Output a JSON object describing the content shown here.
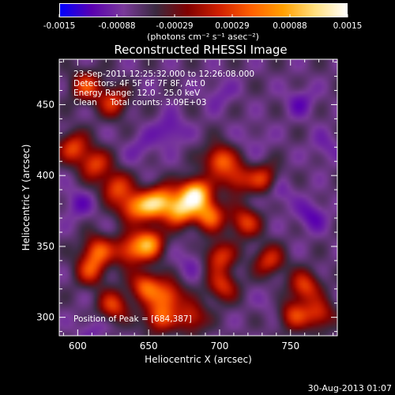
{
  "colorbar": {
    "ticks": [
      "-0.0015",
      "-0.00088",
      "-0.00029",
      "0.00029",
      "0.00088",
      "0.0015"
    ],
    "range": [
      -0.0015,
      0.0015
    ],
    "units_label": "(photons cm⁻² s⁻¹ asec⁻²)",
    "colors": [
      "#0000ff",
      "#5a00b0",
      "#7a3a9a",
      "#3a2a40",
      "#800000",
      "#d02000",
      "#ff6000",
      "#ffa000",
      "#ffe080",
      "#ffffff"
    ]
  },
  "chart_data": {
    "type": "heatmap",
    "title": "Reconstructed RHESSI Image",
    "xlabel": "Heliocentric X (arcsec)",
    "ylabel": "Heliocentric Y (arcsec)",
    "xlim": [
      587,
      783
    ],
    "ylim": [
      287,
      482
    ],
    "xticks": [
      600,
      650,
      700,
      750
    ],
    "yticks": [
      300,
      350,
      400,
      450
    ],
    "annotations": [
      "23-Sep-2011 12:25:32.000 to 12:26:08.000",
      "Detectors: 4F 5F 6F 7F 8F, Att 0",
      "Energy Range: 12.0 - 25.0 keV",
      "Clean     Total counts: 3.09E+03"
    ],
    "peak_label": "Position of Peak = [684,387]",
    "peak": [
      684,
      387
    ],
    "sources": [
      {
        "x": 683,
        "y": 387,
        "value": 0.0015
      },
      {
        "x": 672,
        "y": 375,
        "value": 0.0009
      },
      {
        "x": 693,
        "y": 372,
        "value": 0.0007
      },
      {
        "x": 660,
        "y": 383,
        "value": 0.0006
      },
      {
        "x": 650,
        "y": 378,
        "value": 0.0005
      },
      {
        "x": 638,
        "y": 378,
        "value": 0.0004
      },
      {
        "x": 627,
        "y": 392,
        "value": 0.0004
      },
      {
        "x": 612,
        "y": 408,
        "value": 0.0004
      },
      {
        "x": 700,
        "y": 411,
        "value": 0.0006
      },
      {
        "x": 712,
        "y": 398,
        "value": 0.0003
      },
      {
        "x": 732,
        "y": 397,
        "value": 0.0004
      },
      {
        "x": 718,
        "y": 367,
        "value": 0.0004
      },
      {
        "x": 650,
        "y": 352,
        "value": 0.0009
      },
      {
        "x": 636,
        "y": 347,
        "value": 0.0004
      },
      {
        "x": 614,
        "y": 347,
        "value": 0.0005
      },
      {
        "x": 609,
        "y": 333,
        "value": 0.0003
      },
      {
        "x": 625,
        "y": 308,
        "value": 0.0004
      },
      {
        "x": 648,
        "y": 322,
        "value": 0.0006
      },
      {
        "x": 664,
        "y": 315,
        "value": 0.0005
      },
      {
        "x": 657,
        "y": 300,
        "value": 0.0005
      },
      {
        "x": 680,
        "y": 300,
        "value": 0.0003
      },
      {
        "x": 700,
        "y": 343,
        "value": 0.0004
      },
      {
        "x": 702,
        "y": 322,
        "value": 0.0003
      },
      {
        "x": 735,
        "y": 340,
        "value": 0.0003
      },
      {
        "x": 760,
        "y": 322,
        "value": 0.0004
      },
      {
        "x": 770,
        "y": 302,
        "value": 0.0003
      },
      {
        "x": 752,
        "y": 302,
        "value": 0.0003
      },
      {
        "x": 606,
        "y": 463,
        "value": 0.0004
      },
      {
        "x": 625,
        "y": 452,
        "value": 0.0003
      },
      {
        "x": 597,
        "y": 420,
        "value": 0.0004
      },
      {
        "x": 740,
        "y": 390,
        "value": -0.0012
      },
      {
        "x": 765,
        "y": 372,
        "value": -0.0012
      },
      {
        "x": 757,
        "y": 452,
        "value": -0.0011
      },
      {
        "x": 700,
        "y": 458,
        "value": -0.001
      },
      {
        "x": 665,
        "y": 432,
        "value": -0.0012
      },
      {
        "x": 645,
        "y": 420,
        "value": -0.001
      },
      {
        "x": 600,
        "y": 380,
        "value": -0.0011
      },
      {
        "x": 680,
        "y": 340,
        "value": -0.001
      },
      {
        "x": 610,
        "y": 292,
        "value": -0.001
      },
      {
        "x": 738,
        "y": 310,
        "value": -0.0009
      },
      {
        "x": 775,
        "y": 420,
        "value": -0.001
      },
      {
        "x": 725,
        "y": 425,
        "value": -0.0009
      }
    ],
    "background_value": -0.0007
  },
  "footer": {
    "date": "30-Aug-2013 01:07"
  }
}
